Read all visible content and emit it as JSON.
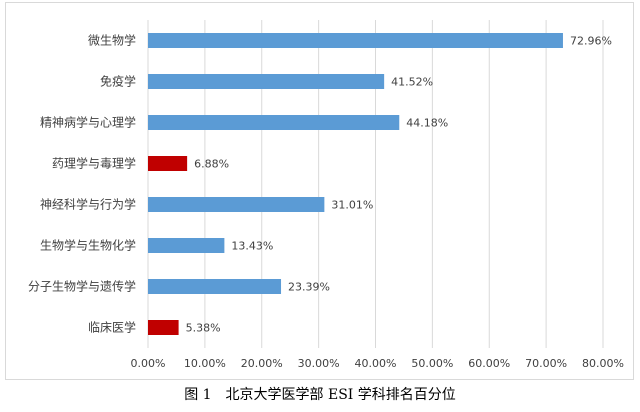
{
  "chart_data": {
    "type": "bar",
    "orientation": "horizontal",
    "categories": [
      "微生物学",
      "免疫学",
      "精神病学与心理学",
      "药理学与毒理学",
      "神经科学与行为学",
      "生物学与生物化学",
      "分子生物学与遗传学",
      "临床医学"
    ],
    "values": [
      72.96,
      41.52,
      44.18,
      6.88,
      31.01,
      13.43,
      23.39,
      5.38
    ],
    "value_labels": [
      "72.96%",
      "41.52%",
      "44.18%",
      "6.88%",
      "31.01%",
      "13.43%",
      "23.39%",
      "5.38%"
    ],
    "bar_colors": [
      "#5b9bd5",
      "#5b9bd5",
      "#5b9bd5",
      "#c00000",
      "#5b9bd5",
      "#5b9bd5",
      "#5b9bd5",
      "#c00000"
    ],
    "x_ticks": [
      0,
      10,
      20,
      30,
      40,
      50,
      60,
      70,
      80
    ],
    "x_tick_labels": [
      "0.00%",
      "10.00%",
      "20.00%",
      "30.00%",
      "40.00%",
      "50.00%",
      "60.00%",
      "70.00%",
      "80.00%"
    ],
    "xlim": [
      0,
      80
    ],
    "grid": "vertical",
    "legend": "none"
  },
  "caption": "图 1　北京大学医学部 ESI 学科排名百分位",
  "colors": {
    "grid": "#d9d9d9",
    "text": "#404040"
  }
}
